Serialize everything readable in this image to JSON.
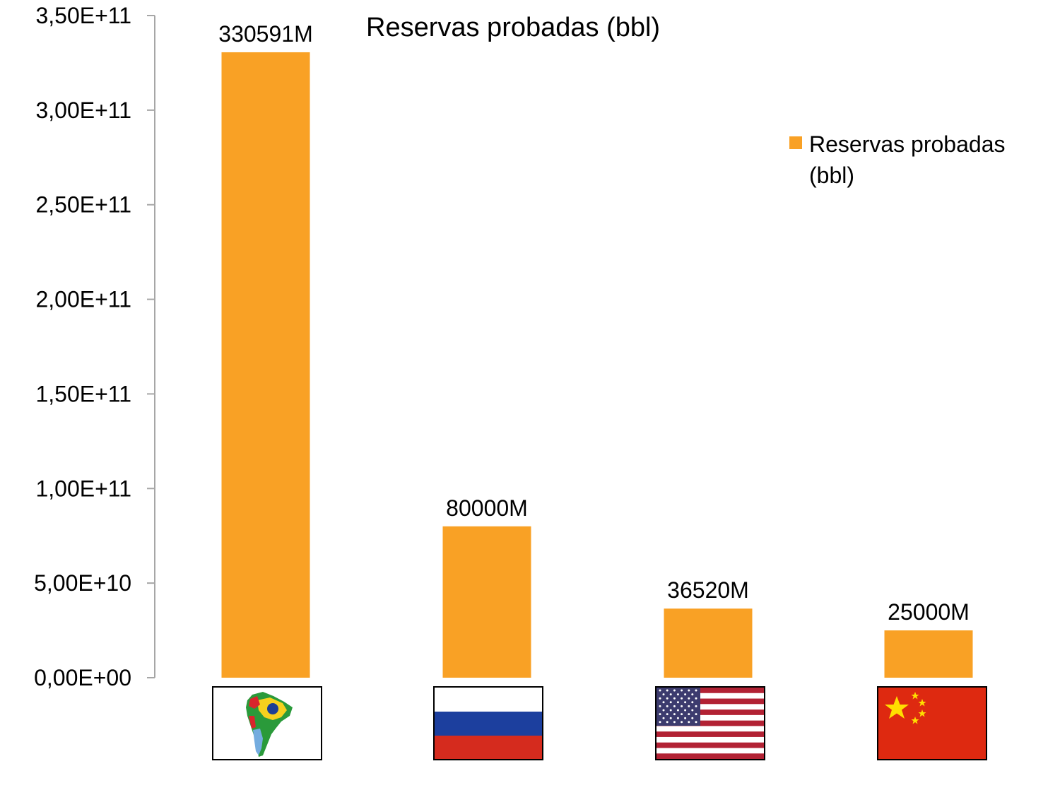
{
  "chart_data": {
    "type": "bar",
    "title": "Reservas probadas (bbl)",
    "xlabel": "",
    "ylabel": "",
    "categories": [
      "",
      "",
      "",
      ""
    ],
    "category_icons": [
      "south-america-flags-map-icon",
      "russia-flag-icon",
      "usa-flag-icon",
      "china-flag-icon"
    ],
    "series": [
      {
        "name": "Reservas probadas (bbl)",
        "values": [
          330591000000,
          80000000000,
          36520000000,
          25000000000
        ],
        "data_labels": [
          "330591M",
          "80000M",
          "36520M",
          "25000M"
        ]
      }
    ],
    "ylim": [
      0,
      350000000000
    ],
    "yticks": [
      0,
      50000000000,
      100000000000,
      150000000000,
      200000000000,
      250000000000,
      300000000000,
      350000000000
    ],
    "ytick_labels": [
      "0,00E+00",
      "5,00E+10",
      "1,00E+11",
      "1,50E+11",
      "2,00E+11",
      "2,50E+11",
      "3,00E+11",
      "3,50E+11"
    ],
    "grid": false,
    "legend_position": "right",
    "colors": {
      "bar": "#F9A125",
      "axis": "#A6A6A6",
      "text": "#000000"
    }
  }
}
